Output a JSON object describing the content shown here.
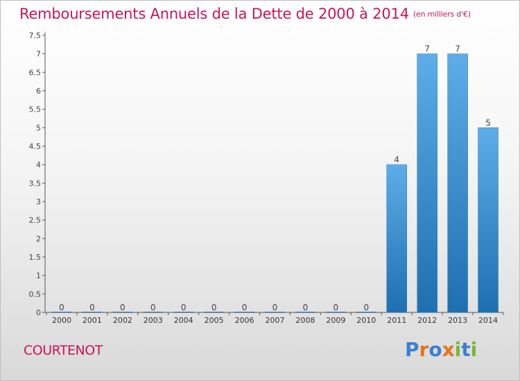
{
  "title": "Remboursements Annuels de la Dette de 2000 à 2014",
  "unit": "(en milliers d'€)",
  "commune": "COURTENOT",
  "logo": {
    "text": "Proxiti",
    "letters": [
      "P",
      "r",
      "o",
      "x",
      "i",
      "t",
      "i"
    ],
    "colors": [
      "#3a7fd5",
      "#e8731a",
      "#3a7fd5",
      "#e8731a",
      "#7cb82f",
      "#3a7fd5",
      "#7cb82f"
    ]
  },
  "colors": {
    "title": "#c8145a",
    "bar_top": "#5dade8",
    "bar_bottom": "#1e6fb0",
    "axis": "#555555"
  },
  "chart_data": {
    "type": "bar",
    "categories": [
      "2000",
      "2001",
      "2002",
      "2003",
      "2004",
      "2005",
      "2006",
      "2007",
      "2008",
      "2009",
      "2010",
      "2011",
      "2012",
      "2013",
      "2014"
    ],
    "values": [
      0,
      0,
      0,
      0,
      0,
      0,
      0,
      0,
      0,
      0,
      0,
      4,
      7,
      7,
      5
    ],
    "data_labels": [
      "0",
      "0",
      "0",
      "0",
      "0",
      "0",
      "0",
      "0",
      "0",
      "0",
      "0",
      "4",
      "7",
      "7",
      "5"
    ],
    "y_ticks": [
      0,
      0.5,
      1,
      1.5,
      2,
      2.5,
      3,
      3.5,
      4,
      4.5,
      5,
      5.5,
      6,
      6.5,
      7,
      7.5
    ],
    "y_tick_labels": [
      "0",
      "0.5",
      "1",
      "1.5",
      "2",
      "2.5",
      "3",
      "3.5",
      "4",
      "4.5",
      "5",
      "5.5",
      "6",
      "6.5",
      "7",
      "7.5"
    ],
    "ylim": [
      0,
      7.5
    ],
    "title": "Remboursements Annuels de la Dette de 2000 à 2014",
    "xlabel": "",
    "ylabel": "",
    "grid": false
  }
}
